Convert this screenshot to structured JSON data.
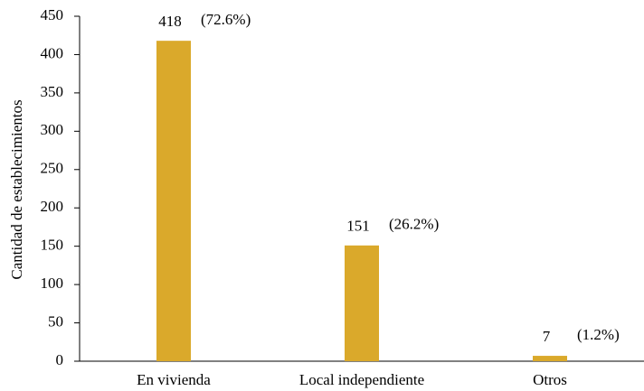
{
  "chart_data": {
    "type": "bar",
    "y_label": "Cantidad de establecimientos",
    "categories": [
      "En vivienda",
      "Local independiente",
      "Otros"
    ],
    "values": [
      418,
      151,
      7
    ],
    "percent_labels": [
      "(72.6%)",
      "(26.2%)",
      "(1.2%)"
    ],
    "color": "#daa92b",
    "ylim": [
      0,
      450
    ],
    "yticks": [
      0,
      50,
      100,
      150,
      200,
      250,
      300,
      350,
      400,
      450
    ],
    "grid": false
  }
}
